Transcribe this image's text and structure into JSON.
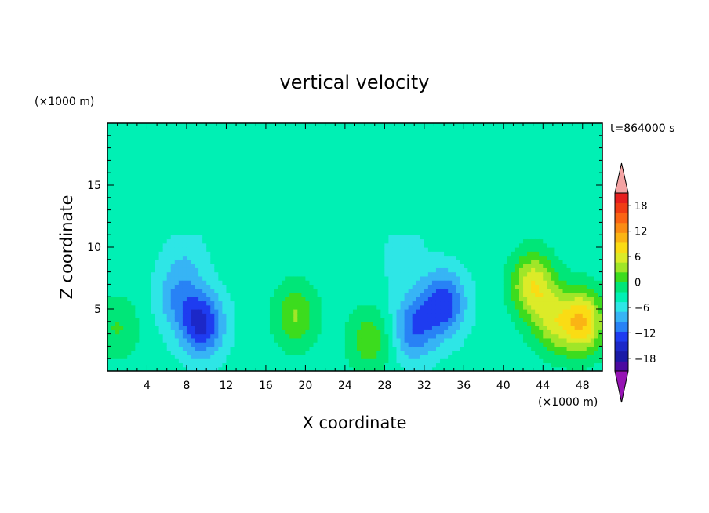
{
  "chart_data": {
    "type": "heatmap",
    "title": "vertical velocity",
    "xlabel": "X coordinate",
    "ylabel": "Z coordinate",
    "x_unit": "(×1000 m)",
    "y_unit": "(×1000 m)",
    "time_label": "t=864000 s",
    "xlim": [
      0,
      50
    ],
    "ylim": [
      0,
      20
    ],
    "x_ticks": [
      4,
      8,
      12,
      16,
      20,
      24,
      28,
      32,
      36,
      40,
      44,
      48
    ],
    "y_ticks": [
      5,
      10,
      15
    ],
    "colorbar": {
      "min": -21,
      "max": 21,
      "step": 3,
      "tick_values": [
        -18,
        -12,
        -6,
        0,
        6,
        12,
        18
      ],
      "tick_labels": [
        "−18",
        "−12",
        "−6",
        "0",
        "6",
        "12",
        "18"
      ],
      "colors": [
        "#4b0aa0",
        "#1a1aa6",
        "#1c28c8",
        "#1e3cf0",
        "#2882f5",
        "#37b4f5",
        "#2ee6e6",
        "#00f0b4",
        "#00e678",
        "#3cdc1e",
        "#a0e628",
        "#dceb28",
        "#fadc14",
        "#fab414",
        "#fa8c14",
        "#fa6414",
        "#f03c14",
        "#e61e1e"
      ],
      "under_color": "#9614b4",
      "over_color": "#f4a3a3"
    },
    "features": [
      {
        "x": 9.5,
        "z": 3.8,
        "value": -14.0
      },
      {
        "x": 34.0,
        "z": 5.5,
        "value": -12.0
      },
      {
        "x": 31.0,
        "z": 3.5,
        "value": -10.0
      },
      {
        "x": 7.0,
        "z": 6.0,
        "value": -6.0
      },
      {
        "x": 19.0,
        "z": 4.5,
        "value": 8.0
      },
      {
        "x": 26.5,
        "z": 2.5,
        "value": 7.0
      },
      {
        "x": 43.0,
        "z": 7.0,
        "value": 13.0
      },
      {
        "x": 48.0,
        "z": 4.0,
        "value": 16.0
      },
      {
        "x": 45.0,
        "z": 4.0,
        "value": 9.0
      },
      {
        "x": 1.0,
        "z": 3.5,
        "value": 5.0
      },
      {
        "x": 30.0,
        "z": 9.0,
        "value": -3.0
      },
      {
        "x": 8.0,
        "z": 9.0,
        "value": -3.0
      }
    ]
  }
}
